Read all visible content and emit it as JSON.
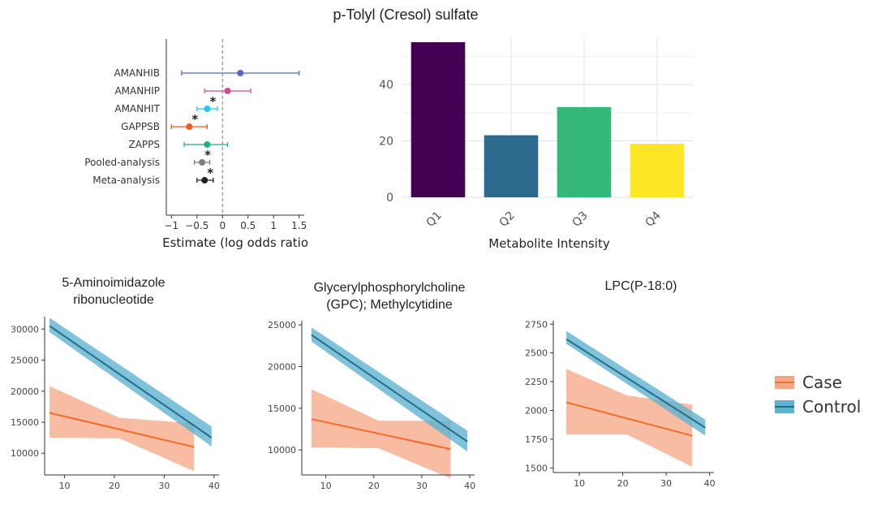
{
  "figure": {
    "title": "p-Tolyl (Cresol) sulfate"
  },
  "colors": {
    "case": "#f26b2a",
    "case_band": "#f4a582",
    "control": "#1f6f8b",
    "control_band": "#5fb3cf"
  },
  "legend": {
    "placement": "right",
    "items": [
      {
        "label": "Case",
        "color": "#f26b2a",
        "band": "#f4a582"
      },
      {
        "label": "Control",
        "color": "#1f6f8b",
        "band": "#5fb3cf"
      }
    ]
  },
  "chart_data": [
    {
      "type": "scatter",
      "subtype": "forest",
      "title": "",
      "xlabel": "Estimate (log odds ratio)",
      "ylabel": "",
      "xlim": [
        -1.1,
        1.6
      ],
      "xticks": [
        "-1",
        "-0.5",
        "0",
        "0.5",
        "1",
        "1.5"
      ],
      "xtick_values": [
        -1,
        -0.5,
        0,
        0.5,
        1,
        1.5
      ],
      "reference_line": 0,
      "grid": false,
      "rows": [
        {
          "label": "AMANHIB",
          "estimate": 0.35,
          "lower": -0.8,
          "upper": 1.5,
          "color": "#5566c4",
          "star": false
        },
        {
          "label": "AMANHIP",
          "estimate": 0.1,
          "lower": -0.35,
          "upper": 0.55,
          "color": "#d14e86",
          "star": false
        },
        {
          "label": "AMANHIT",
          "estimate": -0.3,
          "lower": -0.5,
          "upper": -0.1,
          "color": "#27c7ee",
          "star": true
        },
        {
          "label": "GAPPSB",
          "estimate": -0.65,
          "lower": -1.0,
          "upper": -0.3,
          "color": "#f25a1f",
          "star": true
        },
        {
          "label": "ZAPPS",
          "estimate": -0.3,
          "lower": -0.75,
          "upper": 0.1,
          "color": "#1fae8a",
          "star": false
        },
        {
          "label": "Pooled-analysis",
          "estimate": -0.4,
          "lower": -0.55,
          "upper": -0.25,
          "color": "#7d7d7d",
          "star": true
        },
        {
          "label": "Meta-analysis",
          "estimate": -0.35,
          "lower": -0.5,
          "upper": -0.18,
          "color": "#222222",
          "star": true
        }
      ],
      "star_symbol": "*"
    },
    {
      "type": "bar",
      "title": "",
      "xlabel": "Metabolite Intensity",
      "ylabel": "",
      "categories": [
        "Q1",
        "Q2",
        "Q3",
        "Q4"
      ],
      "values": [
        55,
        22,
        32,
        19
      ],
      "colors": [
        "#440154",
        "#2e6a8d",
        "#35b779",
        "#fde725"
      ],
      "ylim": [
        0,
        57
      ],
      "yticks": [
        0,
        20,
        40
      ],
      "grid": true
    },
    {
      "type": "line",
      "title": "5-Aminoimidazole ribonucleotide",
      "title_lines": [
        "5-Aminoimidazole",
        "ribonucleotide"
      ],
      "xlabel": "",
      "ylabel": "",
      "xlim": [
        6,
        41
      ],
      "ylim": [
        6500,
        32000
      ],
      "xticks": [
        10,
        20,
        30,
        40
      ],
      "yticks": [
        10000,
        15000,
        20000,
        25000,
        30000
      ],
      "series": [
        {
          "name": "Case",
          "x": [
            7,
            36
          ],
          "y": [
            16500,
            11000
          ],
          "band_x": [
            7,
            21,
            36
          ],
          "band_lower": [
            12500,
            12400,
            7100
          ],
          "band_upper": [
            20800,
            15700,
            14800
          ]
        },
        {
          "name": "Control",
          "x": [
            7,
            39.5
          ],
          "y": [
            30500,
            12500
          ],
          "band_x": [
            7,
            39.5
          ],
          "band_lower": [
            29500,
            11100
          ],
          "band_upper": [
            31800,
            14300
          ]
        }
      ]
    },
    {
      "type": "line",
      "title": "Glycerylphosphorylcholine (GPC); Methylcytidine",
      "title_lines": [
        "Glycerylphosphorylcholine",
        "(GPC); Methylcytidine"
      ],
      "xlabel": "",
      "ylabel": "",
      "xlim": [
        5,
        41
      ],
      "ylim": [
        7000,
        25500
      ],
      "xticks": [
        10,
        20,
        30,
        40
      ],
      "yticks": [
        10000,
        15000,
        20000,
        25000
      ],
      "series": [
        {
          "name": "Case",
          "x": [
            7,
            36
          ],
          "y": [
            13700,
            10100
          ],
          "band_x": [
            7,
            21,
            36
          ],
          "band_lower": [
            10300,
            10200,
            6600
          ],
          "band_upper": [
            17300,
            13500,
            13500
          ]
        },
        {
          "name": "Control",
          "x": [
            7,
            39.5
          ],
          "y": [
            23800,
            11000
          ],
          "band_x": [
            7,
            39.5
          ],
          "band_lower": [
            23000,
            9800
          ],
          "band_upper": [
            24700,
            12300
          ]
        }
      ]
    },
    {
      "type": "line",
      "title": "LPC(P-18:0)",
      "xlabel": "",
      "ylabel": "",
      "xlim": [
        4,
        41
      ],
      "ylim": [
        1460,
        2780
      ],
      "xticks": [
        10,
        20,
        30,
        40
      ],
      "yticks": [
        1500,
        1750,
        2000,
        2250,
        2500,
        2750
      ],
      "series": [
        {
          "name": "Case",
          "x": [
            7,
            36
          ],
          "y": [
            2070,
            1780
          ],
          "band_x": [
            7,
            21,
            36
          ],
          "band_lower": [
            1790,
            1790,
            1510
          ],
          "band_upper": [
            2360,
            2130,
            2050
          ]
        },
        {
          "name": "Control",
          "x": [
            7,
            39
          ],
          "y": [
            2620,
            1850
          ],
          "band_x": [
            7,
            39
          ],
          "band_lower": [
            2580,
            1780
          ],
          "band_upper": [
            2690,
            1920
          ]
        }
      ]
    }
  ]
}
